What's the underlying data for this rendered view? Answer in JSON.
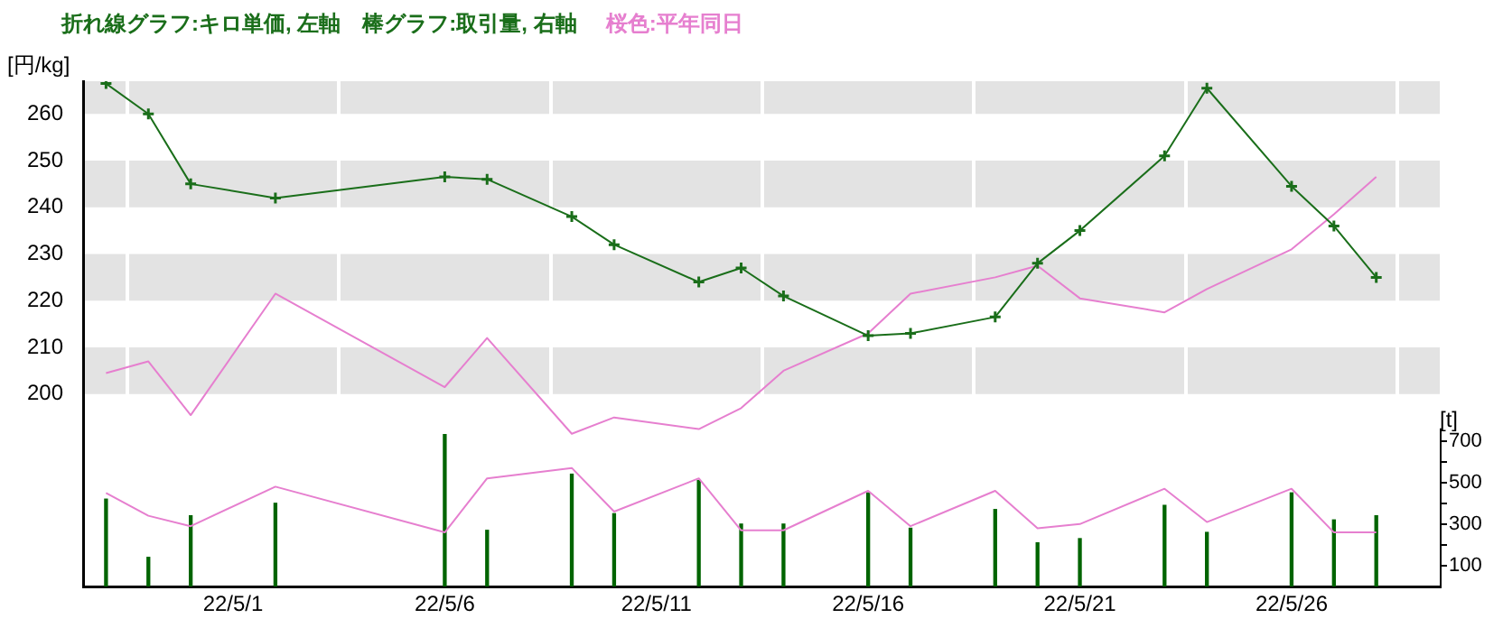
{
  "chart_data": {
    "type": "line",
    "title": "折れ線グラフ:キロ単価, 左軸　棒グラフ:取引量, 右軸",
    "annotations": [
      "桜色:平年同日"
    ],
    "ylabel": "[円/kg]",
    "y2label": "[t]",
    "x": [
      "--04-28",
      "--04-29",
      "--04-30",
      "--05-02",
      "--05-06",
      "--05-07",
      "--05-09",
      "--05-10",
      "--05-12",
      "--05-13",
      "--05-14",
      "--05-16",
      "--05-17",
      "--05-19",
      "--05-20",
      "--05-21",
      "--05-23",
      "--05-24",
      "--05-26",
      "--05-27",
      "--05-28"
    ],
    "series": [
      {
        "type": "bar",
        "axis": "y2",
        "color": "#006400",
        "values": [
          420,
          140,
          340,
          400,
          730,
          270,
          540,
          350,
          510,
          300,
          300,
          450,
          280,
          370,
          210,
          230,
          390,
          260,
          450,
          320,
          340
        ]
      },
      {
        "axis": "y2",
        "color": "#e67fcf",
        "marker": "none",
        "values": [
          450,
          340,
          290,
          480,
          260,
          520,
          570,
          360,
          520,
          270,
          270,
          460,
          290,
          460,
          280,
          300,
          470,
          310,
          470,
          260,
          260
        ]
      },
      {
        "axis": "y",
        "color": "#e67fcf",
        "marker": "none",
        "values": [
          204.5,
          207,
          195.5,
          221.5,
          201.5,
          212,
          191.5,
          195,
          192.5,
          197,
          205,
          213,
          221.5,
          225,
          227.5,
          220.5,
          217.5,
          222.5,
          231,
          238.5,
          246.5
        ]
      },
      {
        "axis": "y",
        "color": "#1a6e1a",
        "marker": "cross",
        "values": [
          266.5,
          260,
          245,
          242,
          246.5,
          246,
          238,
          232,
          224,
          227,
          221,
          212.5,
          213,
          216.5,
          228,
          235,
          251,
          265.5,
          244.5,
          236,
          225
        ]
      }
    ],
    "xlim": [
      "--04-27T11:00",
      "--05-29T12:00"
    ],
    "xticks": [
      {
        "value": "--05-01",
        "label": "22/5/1"
      },
      {
        "value": "--05-06",
        "label": "22/5/6"
      },
      {
        "value": "--05-11",
        "label": "22/5/11"
      },
      {
        "value": "--05-16",
        "label": "22/5/16"
      },
      {
        "value": "--05-21",
        "label": "22/5/21"
      },
      {
        "value": "--05-26",
        "label": "22/5/26"
      }
    ],
    "ylim": [
      158.8,
      267
    ],
    "yticks": [
      200,
      210,
      220,
      230,
      240,
      250,
      260
    ],
    "y2lim": [
      0,
      2430
    ],
    "y2ticks": [
      {
        "value": 100,
        "label": "100"
      },
      {
        "value": 200,
        "label": null
      },
      {
        "value": 300,
        "label": "300"
      },
      {
        "value": 400,
        "label": null
      },
      {
        "value": 500,
        "label": "500"
      },
      {
        "value": 600,
        "label": null
      },
      {
        "value": 700,
        "label": "700"
      }
    ],
    "bands": [
      {
        "axis": "y",
        "from": 200,
        "to": 210,
        "color": "#e3e3e3"
      },
      {
        "axis": "y",
        "from": 220,
        "to": 230,
        "color": "#e3e3e3"
      },
      {
        "axis": "y",
        "from": 240,
        "to": 250,
        "color": "#e3e3e3"
      },
      {
        "axis": "y",
        "from": 260,
        "to": 267,
        "color": "#e3e3e3"
      }
    ],
    "grid": "x",
    "legend": false
  }
}
